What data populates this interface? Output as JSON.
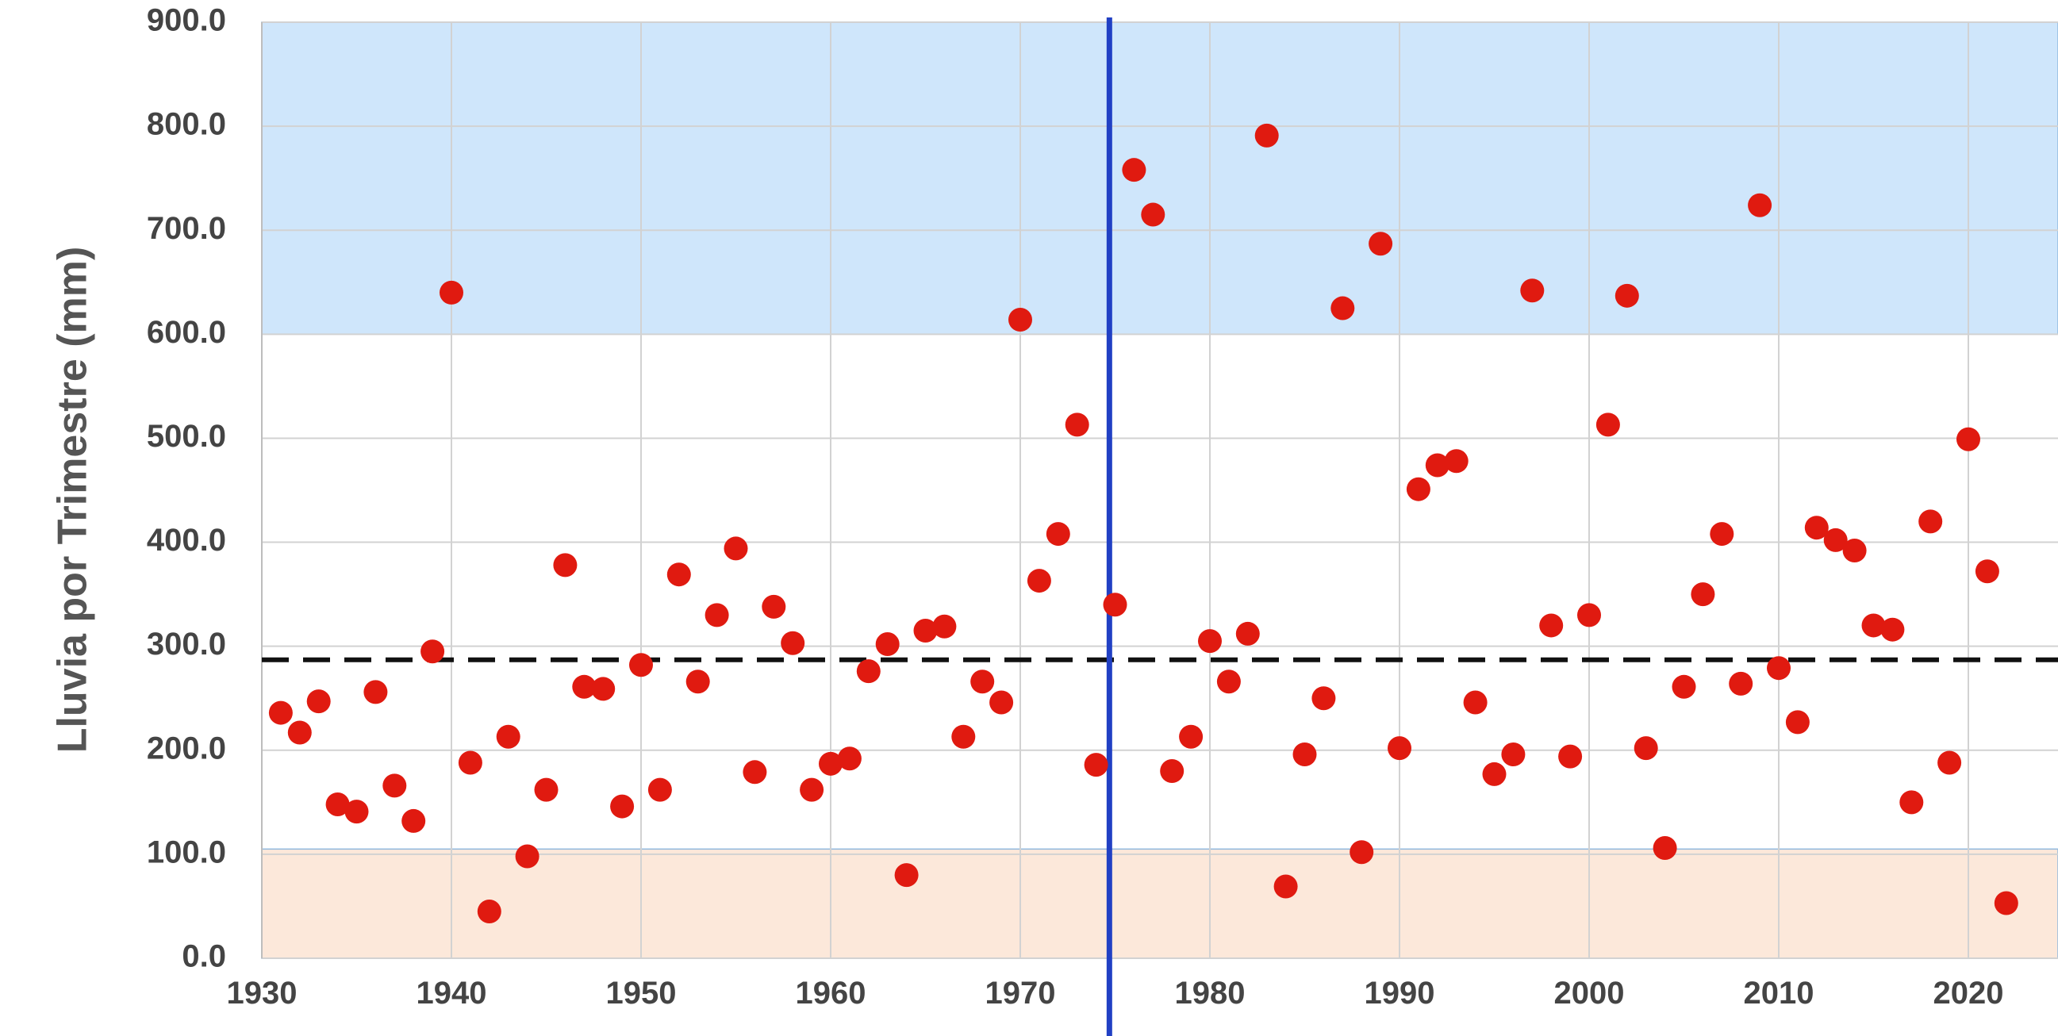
{
  "chart_data": {
    "type": "scatter",
    "title": "",
    "xlabel": "",
    "ylabel": "Lluvia por Trimestre (mm)",
    "xlim": [
      1930,
      2030
    ],
    "ylim": [
      0,
      900
    ],
    "x_ticks": [
      1930,
      1940,
      1950,
      1960,
      1970,
      1980,
      1990,
      2000,
      2010,
      2020
    ],
    "y_ticks": [
      "0.0",
      "100.0",
      "200.0",
      "300.0",
      "400.0",
      "500.0",
      "600.0",
      "700.0",
      "800.0",
      "900.0"
    ],
    "grid": true,
    "bands": [
      {
        "from": 600,
        "to": 900,
        "color": "#cfe6fb"
      },
      {
        "from": 0,
        "to": 105,
        "color": "#fce8da"
      }
    ],
    "reference_line": {
      "y": 287,
      "style": "dashed",
      "color": "#111111"
    },
    "vertical_line": {
      "x": 1974.7,
      "color": "#2140c4"
    },
    "point_color": "#e01a10",
    "series": [
      {
        "points": [
          [
            1931,
            236
          ],
          [
            1932,
            217
          ],
          [
            1933,
            247
          ],
          [
            1934,
            148
          ],
          [
            1935,
            141
          ],
          [
            1936,
            256
          ],
          [
            1937,
            166
          ],
          [
            1938,
            132
          ],
          [
            1939,
            295
          ],
          [
            1940,
            640
          ],
          [
            1941,
            188
          ],
          [
            1942,
            45
          ],
          [
            1943,
            213
          ],
          [
            1944,
            98
          ],
          [
            1945,
            162
          ],
          [
            1946,
            378
          ],
          [
            1947,
            261
          ],
          [
            1948,
            259
          ],
          [
            1949,
            146
          ],
          [
            1950,
            282
          ],
          [
            1951,
            162
          ],
          [
            1952,
            369
          ],
          [
            1953,
            266
          ],
          [
            1954,
            330
          ],
          [
            1955,
            394
          ],
          [
            1956,
            179
          ],
          [
            1957,
            338
          ],
          [
            1958,
            303
          ],
          [
            1959,
            162
          ],
          [
            1960,
            187
          ],
          [
            1961,
            192
          ],
          [
            1962,
            276
          ],
          [
            1963,
            302
          ],
          [
            1964,
            80
          ],
          [
            1965,
            315
          ],
          [
            1966,
            319
          ],
          [
            1967,
            213
          ],
          [
            1968,
            266
          ],
          [
            1969,
            246
          ],
          [
            1970,
            614
          ],
          [
            1971,
            363
          ],
          [
            1972,
            408
          ],
          [
            1973,
            513
          ],
          [
            1974,
            186
          ],
          [
            1975,
            340
          ],
          [
            1976,
            758
          ],
          [
            1977,
            715
          ],
          [
            1978,
            180
          ],
          [
            1979,
            213
          ],
          [
            1980,
            305
          ],
          [
            1981,
            266
          ],
          [
            1982,
            312
          ],
          [
            1983,
            791
          ],
          [
            1984,
            69
          ],
          [
            1985,
            196
          ],
          [
            1986,
            250
          ],
          [
            1987,
            625
          ],
          [
            1988,
            102
          ],
          [
            1989,
            687
          ],
          [
            1990,
            202
          ],
          [
            1991,
            451
          ],
          [
            1992,
            474
          ],
          [
            1993,
            478
          ],
          [
            1994,
            246
          ],
          [
            1995,
            177
          ],
          [
            1996,
            196
          ],
          [
            1997,
            642
          ],
          [
            1998,
            320
          ],
          [
            1999,
            194
          ],
          [
            2000,
            330
          ],
          [
            2001,
            513
          ],
          [
            2002,
            637
          ],
          [
            2003,
            202
          ],
          [
            2004,
            106
          ],
          [
            2005,
            261
          ],
          [
            2006,
            350
          ],
          [
            2007,
            408
          ],
          [
            2008,
            264
          ],
          [
            2009,
            724
          ],
          [
            2010,
            279
          ],
          [
            2011,
            227
          ],
          [
            2012,
            414
          ],
          [
            2013,
            402
          ],
          [
            2014,
            392
          ],
          [
            2015,
            320
          ],
          [
            2016,
            316
          ],
          [
            2017,
            150
          ],
          [
            2018,
            420
          ],
          [
            2019,
            188
          ],
          [
            2020,
            499
          ],
          [
            2021,
            372
          ],
          [
            2022,
            53
          ]
        ]
      }
    ]
  }
}
